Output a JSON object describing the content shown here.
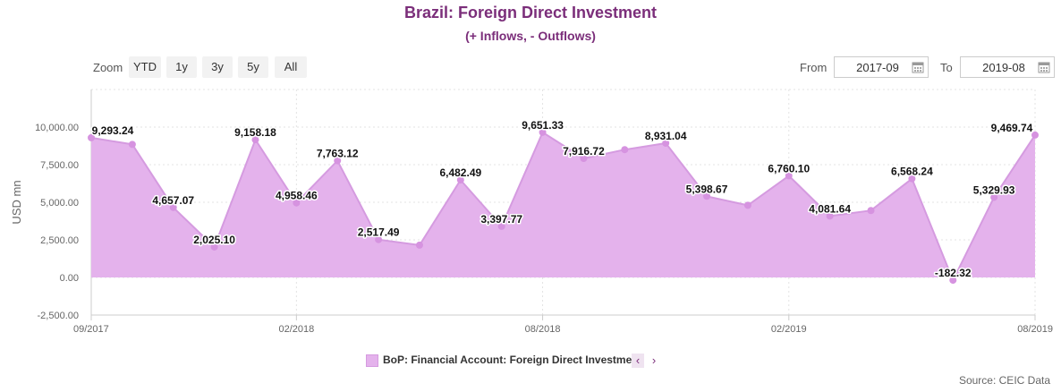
{
  "header": {
    "title": "Brazil: Foreign Direct Investment",
    "subtitle": "(+ Inflows, - Outflows)"
  },
  "zoom": {
    "label": "Zoom",
    "buttons": [
      "YTD",
      "1y",
      "3y",
      "5y",
      "All"
    ]
  },
  "range": {
    "from_label": "From",
    "from_value": "2017-09",
    "to_label": "To",
    "to_value": "2019-08"
  },
  "legend": {
    "label": "BoP: Financial Account: Foreign Direct Investment",
    "prev": "‹",
    "next": "›"
  },
  "source": "Source: CEIC Data",
  "colors": {
    "title": "#7b2e7a",
    "area_fill": "#e4b2ec",
    "line": "#d59be0",
    "marker": "#d693e0"
  },
  "chart_data": {
    "type": "area",
    "title": "Brazil: Foreign Direct Investment",
    "subtitle": "(+ Inflows, - Outflows)",
    "ylabel": "USD mn",
    "xlabel": "",
    "ylim": [
      -2500,
      12500
    ],
    "yticks": [
      -2500,
      0,
      2500,
      5000,
      7500,
      10000
    ],
    "ytick_labels": [
      "-2,500.00",
      "0.00",
      "2,500.00",
      "5,000.00",
      "7,500.00",
      "10,000.00"
    ],
    "xtick_labels": [
      "09/2017",
      "02/2018",
      "08/2018",
      "02/2019",
      "08/2019"
    ],
    "xtick_index": [
      0,
      5,
      11,
      17,
      23
    ],
    "grid": true,
    "legend_position": "bottom",
    "x": [
      "2017-09",
      "2017-10",
      "2017-11",
      "2017-12",
      "2018-01",
      "2018-02",
      "2018-03",
      "2018-04",
      "2018-05",
      "2018-06",
      "2018-07",
      "2018-08",
      "2018-09",
      "2018-10",
      "2018-11",
      "2018-12",
      "2019-01",
      "2019-02",
      "2019-03",
      "2019-04",
      "2019-05",
      "2019-06",
      "2019-07",
      "2019-08"
    ],
    "series": [
      {
        "name": "BoP: Financial Account: Foreign Direct Investment",
        "values": [
          9293.24,
          8850,
          4657.07,
          2025.1,
          9158.18,
          4958.46,
          7763.12,
          2517.49,
          2150,
          6482.49,
          3397.77,
          9651.33,
          7916.72,
          8500,
          8931.04,
          5398.67,
          4800,
          6760.1,
          4081.64,
          4450,
          6568.24,
          -182.32,
          5329.93,
          9469.74
        ],
        "labels": [
          "9,293.24",
          "",
          "4,657.07",
          "2,025.10",
          "9,158.18",
          "4,958.46",
          "7,763.12",
          "2,517.49",
          "",
          "6,482.49",
          "3,397.77",
          "9,651.33",
          "7,916.72",
          "",
          "8,931.04",
          "5,398.67",
          "",
          "6,760.10",
          "4,081.64",
          "",
          "6,568.24",
          "-182.32",
          "5,329.93",
          "9,469.74"
        ]
      }
    ]
  }
}
